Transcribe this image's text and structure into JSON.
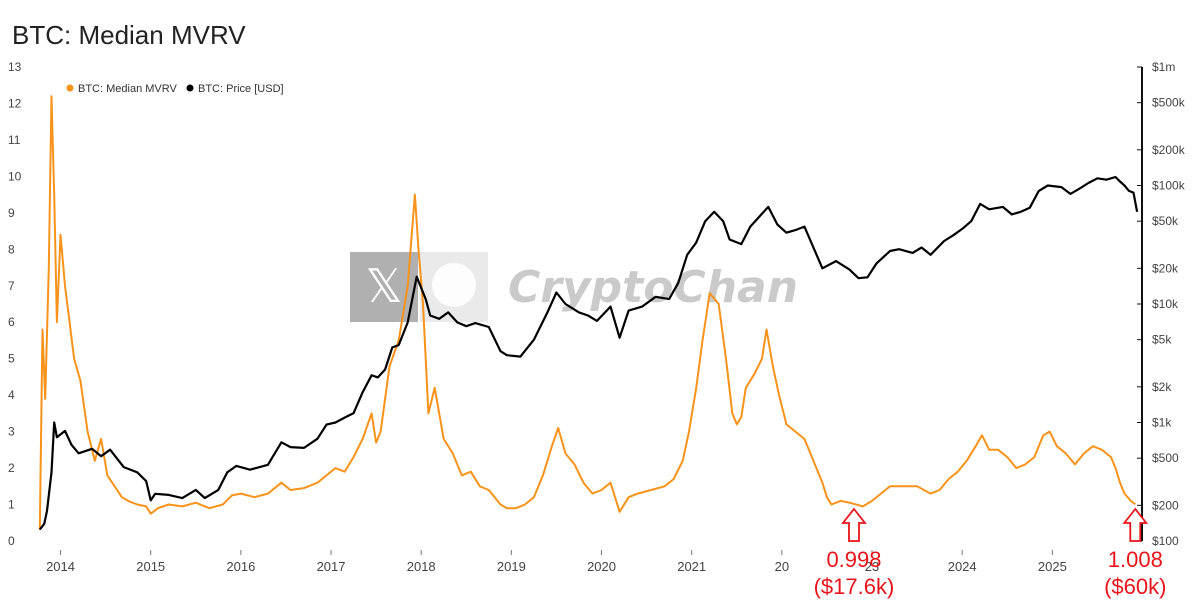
{
  "title": "BTC: Median MVRV",
  "watermark": "CryptoChan",
  "colors": {
    "mvrv": "#f7931a",
    "price": "#000000",
    "annotation": "#e8141b"
  },
  "chart_data": {
    "type": "line",
    "legend": {
      "placement": "top-left",
      "entries": [
        "BTC: Median MVRV",
        "BTC: Price [USD]"
      ]
    },
    "x_ticks": [
      "2014",
      "2015",
      "2016",
      "2017",
      "2018",
      "2019",
      "2020",
      "2021",
      "20",
      "23",
      "2024",
      "2025"
    ],
    "x_tick_values": [
      2014,
      2015,
      2016,
      2017,
      2018,
      2019,
      2020,
      2021,
      2022,
      2023,
      2024,
      2025
    ],
    "xlim": [
      2013.75,
      2025.95
    ],
    "left_axis": {
      "ticks": [
        "0",
        "1",
        "2",
        "3",
        "4",
        "5",
        "6",
        "7",
        "8",
        "9",
        "10",
        "11",
        "12",
        "13"
      ],
      "ylim": [
        0,
        13
      ]
    },
    "right_axis": {
      "scale": "log",
      "ticks": [
        "$100",
        "$200",
        "$500",
        "$1k",
        "$2k",
        "$5k",
        "$10k",
        "$20k",
        "$50k",
        "$100k",
        "$200k",
        "$500k",
        "$1m"
      ],
      "tick_values": [
        100,
        200,
        500,
        1000,
        2000,
        5000,
        10000,
        20000,
        50000,
        100000,
        200000,
        500000,
        1000000
      ],
      "ylim": [
        100,
        1000000
      ]
    },
    "series": [
      {
        "name": "BTC: Median MVRV",
        "axis": "left",
        "points": [
          [
            2013.77,
            0.3
          ],
          [
            2013.8,
            5.8
          ],
          [
            2013.83,
            3.9
          ],
          [
            2013.87,
            7.5
          ],
          [
            2013.9,
            12.2
          ],
          [
            2013.93,
            9.5
          ],
          [
            2013.96,
            6.0
          ],
          [
            2014.0,
            8.4
          ],
          [
            2014.05,
            7.0
          ],
          [
            2014.1,
            6.0
          ],
          [
            2014.15,
            5.0
          ],
          [
            2014.22,
            4.4
          ],
          [
            2014.3,
            3.0
          ],
          [
            2014.38,
            2.2
          ],
          [
            2014.45,
            2.8
          ],
          [
            2014.52,
            1.8
          ],
          [
            2014.6,
            1.5
          ],
          [
            2014.68,
            1.2
          ],
          [
            2014.75,
            1.1
          ],
          [
            2014.85,
            1.0
          ],
          [
            2014.95,
            0.95
          ],
          [
            2015.0,
            0.75
          ],
          [
            2015.08,
            0.9
          ],
          [
            2015.2,
            1.0
          ],
          [
            2015.35,
            0.95
          ],
          [
            2015.5,
            1.05
          ],
          [
            2015.65,
            0.9
          ],
          [
            2015.8,
            1.0
          ],
          [
            2015.9,
            1.25
          ],
          [
            2016.0,
            1.3
          ],
          [
            2016.15,
            1.2
          ],
          [
            2016.3,
            1.3
          ],
          [
            2016.45,
            1.6
          ],
          [
            2016.55,
            1.4
          ],
          [
            2016.7,
            1.45
          ],
          [
            2016.85,
            1.6
          ],
          [
            2016.95,
            1.8
          ],
          [
            2017.05,
            2.0
          ],
          [
            2017.15,
            1.9
          ],
          [
            2017.25,
            2.3
          ],
          [
            2017.35,
            2.8
          ],
          [
            2017.45,
            3.5
          ],
          [
            2017.5,
            2.7
          ],
          [
            2017.55,
            3.0
          ],
          [
            2017.65,
            4.8
          ],
          [
            2017.75,
            5.5
          ],
          [
            2017.85,
            7.0
          ],
          [
            2017.93,
            9.5
          ],
          [
            2017.97,
            8.0
          ],
          [
            2018.02,
            6.5
          ],
          [
            2018.08,
            3.5
          ],
          [
            2018.15,
            4.2
          ],
          [
            2018.25,
            2.8
          ],
          [
            2018.35,
            2.4
          ],
          [
            2018.45,
            1.8
          ],
          [
            2018.55,
            1.9
          ],
          [
            2018.65,
            1.5
          ],
          [
            2018.75,
            1.4
          ],
          [
            2018.88,
            1.0
          ],
          [
            2018.95,
            0.9
          ],
          [
            2019.05,
            0.9
          ],
          [
            2019.15,
            1.0
          ],
          [
            2019.25,
            1.2
          ],
          [
            2019.35,
            1.8
          ],
          [
            2019.45,
            2.6
          ],
          [
            2019.52,
            3.1
          ],
          [
            2019.6,
            2.4
          ],
          [
            2019.7,
            2.1
          ],
          [
            2019.8,
            1.6
          ],
          [
            2019.9,
            1.3
          ],
          [
            2020.0,
            1.4
          ],
          [
            2020.1,
            1.6
          ],
          [
            2020.2,
            0.8
          ],
          [
            2020.3,
            1.2
          ],
          [
            2020.4,
            1.3
          ],
          [
            2020.55,
            1.4
          ],
          [
            2020.7,
            1.5
          ],
          [
            2020.8,
            1.7
          ],
          [
            2020.9,
            2.2
          ],
          [
            2020.97,
            3.0
          ],
          [
            2021.05,
            4.2
          ],
          [
            2021.12,
            5.5
          ],
          [
            2021.2,
            6.8
          ],
          [
            2021.3,
            6.5
          ],
          [
            2021.38,
            5.0
          ],
          [
            2021.45,
            3.5
          ],
          [
            2021.5,
            3.2
          ],
          [
            2021.55,
            3.4
          ],
          [
            2021.6,
            4.2
          ],
          [
            2021.7,
            4.6
          ],
          [
            2021.78,
            5.0
          ],
          [
            2021.83,
            5.8
          ],
          [
            2021.9,
            4.8
          ],
          [
            2021.97,
            4.0
          ],
          [
            2022.05,
            3.2
          ],
          [
            2022.15,
            3.0
          ],
          [
            2022.25,
            2.8
          ],
          [
            2022.35,
            2.2
          ],
          [
            2022.45,
            1.6
          ],
          [
            2022.5,
            1.2
          ],
          [
            2022.55,
            1.0
          ],
          [
            2022.65,
            1.1
          ],
          [
            2022.75,
            1.05
          ],
          [
            2022.9,
            0.95
          ],
          [
            2023.0,
            1.1
          ],
          [
            2023.1,
            1.3
          ],
          [
            2023.2,
            1.5
          ],
          [
            2023.35,
            1.5
          ],
          [
            2023.5,
            1.5
          ],
          [
            2023.65,
            1.3
          ],
          [
            2023.75,
            1.4
          ],
          [
            2023.85,
            1.7
          ],
          [
            2023.95,
            1.9
          ],
          [
            2024.05,
            2.2
          ],
          [
            2024.15,
            2.6
          ],
          [
            2024.22,
            2.9
          ],
          [
            2024.3,
            2.5
          ],
          [
            2024.4,
            2.5
          ],
          [
            2024.5,
            2.3
          ],
          [
            2024.6,
            2.0
          ],
          [
            2024.7,
            2.1
          ],
          [
            2024.8,
            2.3
          ],
          [
            2024.9,
            2.9
          ],
          [
            2024.97,
            3.0
          ],
          [
            2025.05,
            2.6
          ],
          [
            2025.15,
            2.4
          ],
          [
            2025.25,
            2.1
          ],
          [
            2025.35,
            2.4
          ],
          [
            2025.45,
            2.6
          ],
          [
            2025.55,
            2.5
          ],
          [
            2025.65,
            2.3
          ],
          [
            2025.7,
            2.0
          ],
          [
            2025.75,
            1.6
          ],
          [
            2025.8,
            1.3
          ],
          [
            2025.87,
            1.1
          ],
          [
            2025.92,
            1.008
          ]
        ]
      },
      {
        "name": "BTC: Price [USD]",
        "axis": "right",
        "points": [
          [
            2013.77,
            125
          ],
          [
            2013.82,
            140
          ],
          [
            2013.85,
            180
          ],
          [
            2013.9,
            380
          ],
          [
            2013.93,
            1000
          ],
          [
            2013.96,
            750
          ],
          [
            2014.05,
            850
          ],
          [
            2014.12,
            650
          ],
          [
            2014.2,
            550
          ],
          [
            2014.35,
            600
          ],
          [
            2014.45,
            520
          ],
          [
            2014.55,
            590
          ],
          [
            2014.7,
            420
          ],
          [
            2014.85,
            380
          ],
          [
            2014.95,
            320
          ],
          [
            2015.0,
            220
          ],
          [
            2015.05,
            250
          ],
          [
            2015.2,
            245
          ],
          [
            2015.35,
            230
          ],
          [
            2015.5,
            270
          ],
          [
            2015.6,
            230
          ],
          [
            2015.75,
            270
          ],
          [
            2015.85,
            380
          ],
          [
            2015.95,
            430
          ],
          [
            2016.1,
            400
          ],
          [
            2016.3,
            440
          ],
          [
            2016.45,
            680
          ],
          [
            2016.55,
            620
          ],
          [
            2016.7,
            610
          ],
          [
            2016.85,
            730
          ],
          [
            2016.95,
            960
          ],
          [
            2017.05,
            1000
          ],
          [
            2017.15,
            1100
          ],
          [
            2017.25,
            1200
          ],
          [
            2017.35,
            1800
          ],
          [
            2017.45,
            2500
          ],
          [
            2017.52,
            2400
          ],
          [
            2017.6,
            2800
          ],
          [
            2017.68,
            4300
          ],
          [
            2017.75,
            4500
          ],
          [
            2017.85,
            7000
          ],
          [
            2017.95,
            17000
          ],
          [
            2018.05,
            11000
          ],
          [
            2018.1,
            8000
          ],
          [
            2018.2,
            7500
          ],
          [
            2018.3,
            8500
          ],
          [
            2018.4,
            7000
          ],
          [
            2018.5,
            6500
          ],
          [
            2018.6,
            6900
          ],
          [
            2018.75,
            6400
          ],
          [
            2018.88,
            4000
          ],
          [
            2018.95,
            3700
          ],
          [
            2019.1,
            3600
          ],
          [
            2019.25,
            5000
          ],
          [
            2019.4,
            8500
          ],
          [
            2019.5,
            12500
          ],
          [
            2019.6,
            10000
          ],
          [
            2019.75,
            8500
          ],
          [
            2019.85,
            8000
          ],
          [
            2019.95,
            7200
          ],
          [
            2020.1,
            9500
          ],
          [
            2020.2,
            5200
          ],
          [
            2020.3,
            8800
          ],
          [
            2020.45,
            9500
          ],
          [
            2020.6,
            11500
          ],
          [
            2020.75,
            11000
          ],
          [
            2020.85,
            15000
          ],
          [
            2020.95,
            26000
          ],
          [
            2021.05,
            33000
          ],
          [
            2021.15,
            50000
          ],
          [
            2021.25,
            60000
          ],
          [
            2021.35,
            50000
          ],
          [
            2021.42,
            35000
          ],
          [
            2021.55,
            32000
          ],
          [
            2021.65,
            45000
          ],
          [
            2021.8,
            60000
          ],
          [
            2021.85,
            66000
          ],
          [
            2021.95,
            47000
          ],
          [
            2022.05,
            40000
          ],
          [
            2022.15,
            42000
          ],
          [
            2022.25,
            45000
          ],
          [
            2022.35,
            30000
          ],
          [
            2022.45,
            20000
          ],
          [
            2022.6,
            23000
          ],
          [
            2022.75,
            19500
          ],
          [
            2022.85,
            16500
          ],
          [
            2022.95,
            16800
          ],
          [
            2023.05,
            22000
          ],
          [
            2023.2,
            28000
          ],
          [
            2023.3,
            29000
          ],
          [
            2023.45,
            27000
          ],
          [
            2023.55,
            30000
          ],
          [
            2023.65,
            26000
          ],
          [
            2023.8,
            34000
          ],
          [
            2023.9,
            38000
          ],
          [
            2024.0,
            43000
          ],
          [
            2024.1,
            50000
          ],
          [
            2024.2,
            70000
          ],
          [
            2024.3,
            63000
          ],
          [
            2024.45,
            66000
          ],
          [
            2024.55,
            57000
          ],
          [
            2024.65,
            60000
          ],
          [
            2024.75,
            65000
          ],
          [
            2024.85,
            90000
          ],
          [
            2024.95,
            100000
          ],
          [
            2025.1,
            97000
          ],
          [
            2025.2,
            85000
          ],
          [
            2025.3,
            94000
          ],
          [
            2025.4,
            105000
          ],
          [
            2025.5,
            115000
          ],
          [
            2025.6,
            112000
          ],
          [
            2025.7,
            118000
          ],
          [
            2025.75,
            108000
          ],
          [
            2025.8,
            100000
          ],
          [
            2025.85,
            90000
          ],
          [
            2025.9,
            87000
          ],
          [
            2025.94,
            60000
          ]
        ]
      }
    ],
    "annotations": [
      {
        "x": 2022.8,
        "value": "0.998",
        "price": "($17.6k)"
      },
      {
        "x": 2025.92,
        "value": "1.008",
        "price": "($60k)"
      }
    ]
  }
}
